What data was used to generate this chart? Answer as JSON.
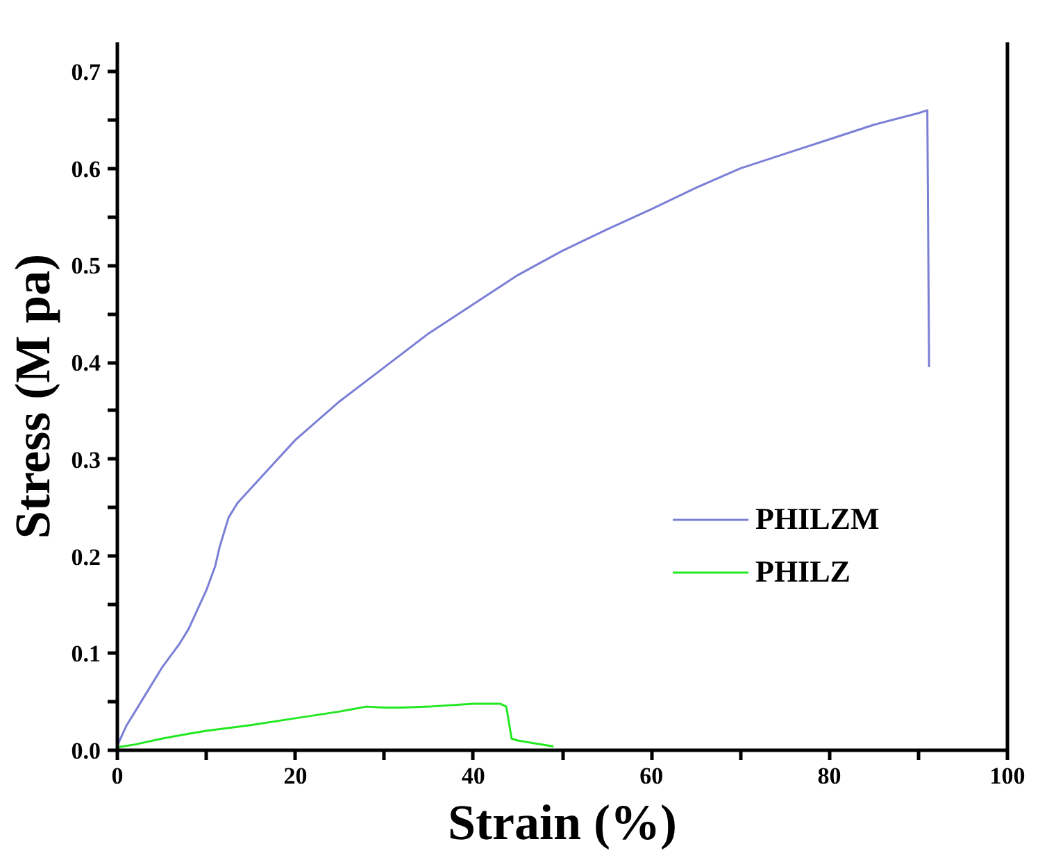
{
  "chart_data": {
    "type": "line",
    "xlabel": "Strain (%)",
    "ylabel": "Stress (M pa)",
    "xlim": [
      0,
      100
    ],
    "ylim": [
      0,
      0.73
    ],
    "xticks": [
      0,
      {
        "value": 10,
        "label": null
      },
      20,
      {
        "value": 30,
        "label": null
      },
      40,
      {
        "value": 50,
        "label": null
      },
      60,
      {
        "value": 70,
        "label": null
      },
      80,
      {
        "value": 90,
        "label": null
      },
      100
    ],
    "yticks": [
      {
        "value": 0,
        "label": "0.0"
      },
      {
        "value": 0.05,
        "label": null
      },
      0.1,
      {
        "value": 0.15,
        "label": null
      },
      0.2,
      {
        "value": 0.25,
        "label": null
      },
      0.3,
      {
        "value": 0.35,
        "label": null
      },
      0.4,
      {
        "value": 0.45,
        "label": null
      },
      0.5,
      {
        "value": 0.55,
        "label": null
      },
      0.6,
      {
        "value": 0.65,
        "label": null
      },
      0.7
    ],
    "grid": false,
    "legend": "right",
    "line_style": "solid",
    "series": [
      {
        "name": "PHILZM",
        "color": "#7b7fd6",
        "x": [
          0,
          1,
          2,
          3,
          5,
          7,
          8,
          9,
          10,
          11,
          11.5,
          12.5,
          13.5,
          15,
          17.5,
          20,
          25,
          30,
          35,
          40,
          45,
          50,
          55,
          60,
          65,
          70,
          75,
          80,
          85,
          90,
          91,
          91.2
        ],
        "values": [
          0.005,
          0.025,
          0.04,
          0.055,
          0.085,
          0.11,
          0.125,
          0.145,
          0.165,
          0.19,
          0.21,
          0.24,
          0.255,
          0.27,
          0.295,
          0.32,
          0.36,
          0.395,
          0.43,
          0.46,
          0.49,
          0.515,
          0.537,
          0.558,
          0.58,
          0.6,
          0.615,
          0.63,
          0.645,
          0.657,
          0.66,
          0.395
        ]
      },
      {
        "name": "PHILZ",
        "color": "#22e822",
        "x": [
          0,
          2,
          5,
          8,
          10,
          15,
          20,
          25,
          28,
          30,
          32,
          35,
          40,
          42,
          43,
          43.7,
          44.3,
          45,
          47,
          49
        ],
        "values": [
          0.003,
          0.006,
          0.012,
          0.017,
          0.02,
          0.026,
          0.033,
          0.04,
          0.045,
          0.044,
          0.044,
          0.045,
          0.048,
          0.048,
          0.048,
          0.045,
          0.012,
          0.01,
          0.007,
          0.004
        ]
      }
    ]
  }
}
